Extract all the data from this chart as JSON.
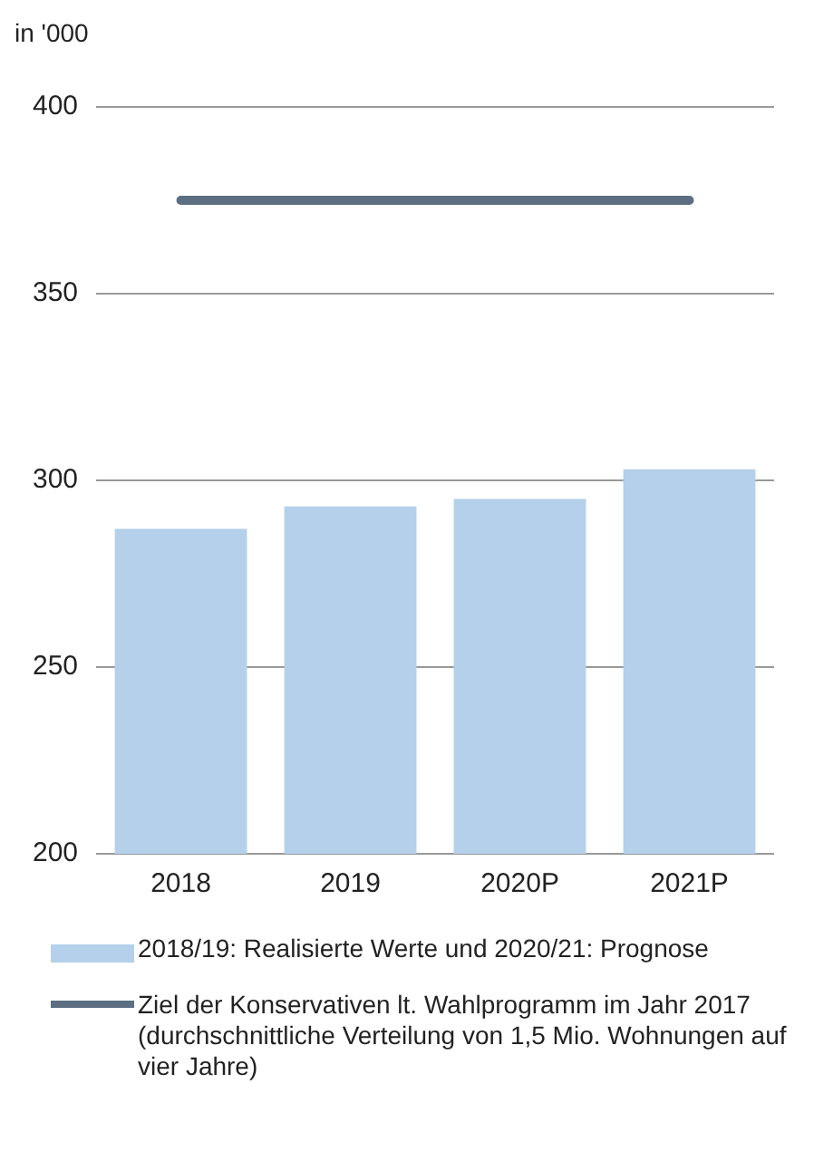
{
  "chart_data": {
    "type": "bar",
    "ylabel": "in '000",
    "categories": [
      "2018",
      "2019",
      "2020P",
      "2021P"
    ],
    "series": [
      {
        "name": "2018/19: Realisierte Werte und 2020/21: Prognose",
        "color": "#b4d0ea",
        "values": [
          287,
          293,
          295,
          303
        ]
      },
      {
        "name": "Ziel der Konservativen lt. Wahlprogramm im Jahr 2017 (durchschnittliche Verteilung von 1,5 Mio. Wohnungen auf vier Jahre)",
        "type": "line",
        "color": "#5b6e82",
        "values": [
          375,
          375,
          375,
          375
        ]
      }
    ],
    "ylim": [
      200,
      400
    ],
    "yticks": [
      200,
      250,
      300,
      350,
      400
    ],
    "grid": "y",
    "legend": "bottom",
    "marker": "none"
  }
}
